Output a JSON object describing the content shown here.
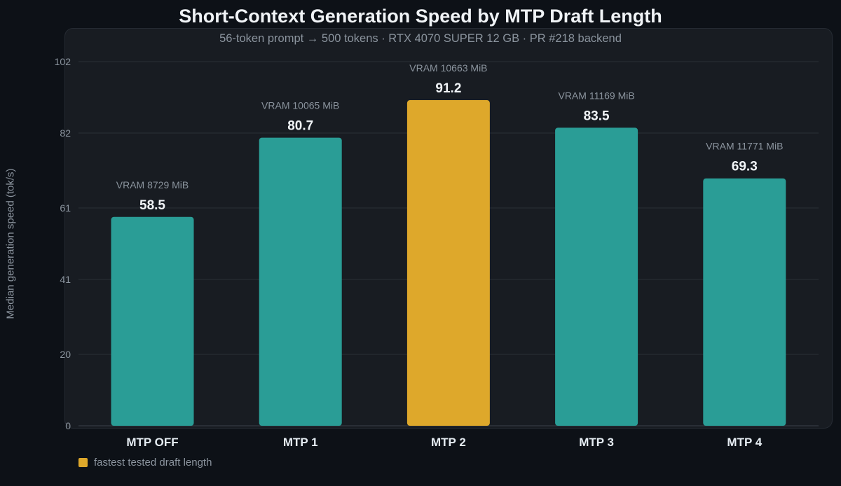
{
  "chart_data": {
    "type": "bar",
    "title": "Short-Context Generation Speed by MTP Draft Length",
    "subtitle": "56-token prompt → 500 tokens · RTX 4070 SUPER 12 GB · PR #218 backend",
    "xlabel": "",
    "ylabel": "Median generation speed (tok/s)",
    "ylim": [
      0,
      102
    ],
    "yticks": [
      0,
      20,
      41,
      61,
      82,
      102
    ],
    "grid": true,
    "categories": [
      "MTP OFF",
      "MTP 1",
      "MTP 2",
      "MTP 3",
      "MTP 4"
    ],
    "values": [
      58.5,
      80.7,
      91.2,
      83.5,
      69.3
    ],
    "value_labels": [
      "58.5",
      "80.7",
      "91.2",
      "83.5",
      "69.3"
    ],
    "annotations": [
      "VRAM 8729 MiB",
      "VRAM 10065 MiB",
      "VRAM 10663 MiB",
      "VRAM 11169 MiB",
      "VRAM 11771 MiB"
    ],
    "highlight_index": 2,
    "colors": {
      "bar": "#2a9d96",
      "highlight": "#dea82b"
    },
    "legend": {
      "placement": "bottom-left",
      "label": "fastest tested draft length"
    }
  }
}
